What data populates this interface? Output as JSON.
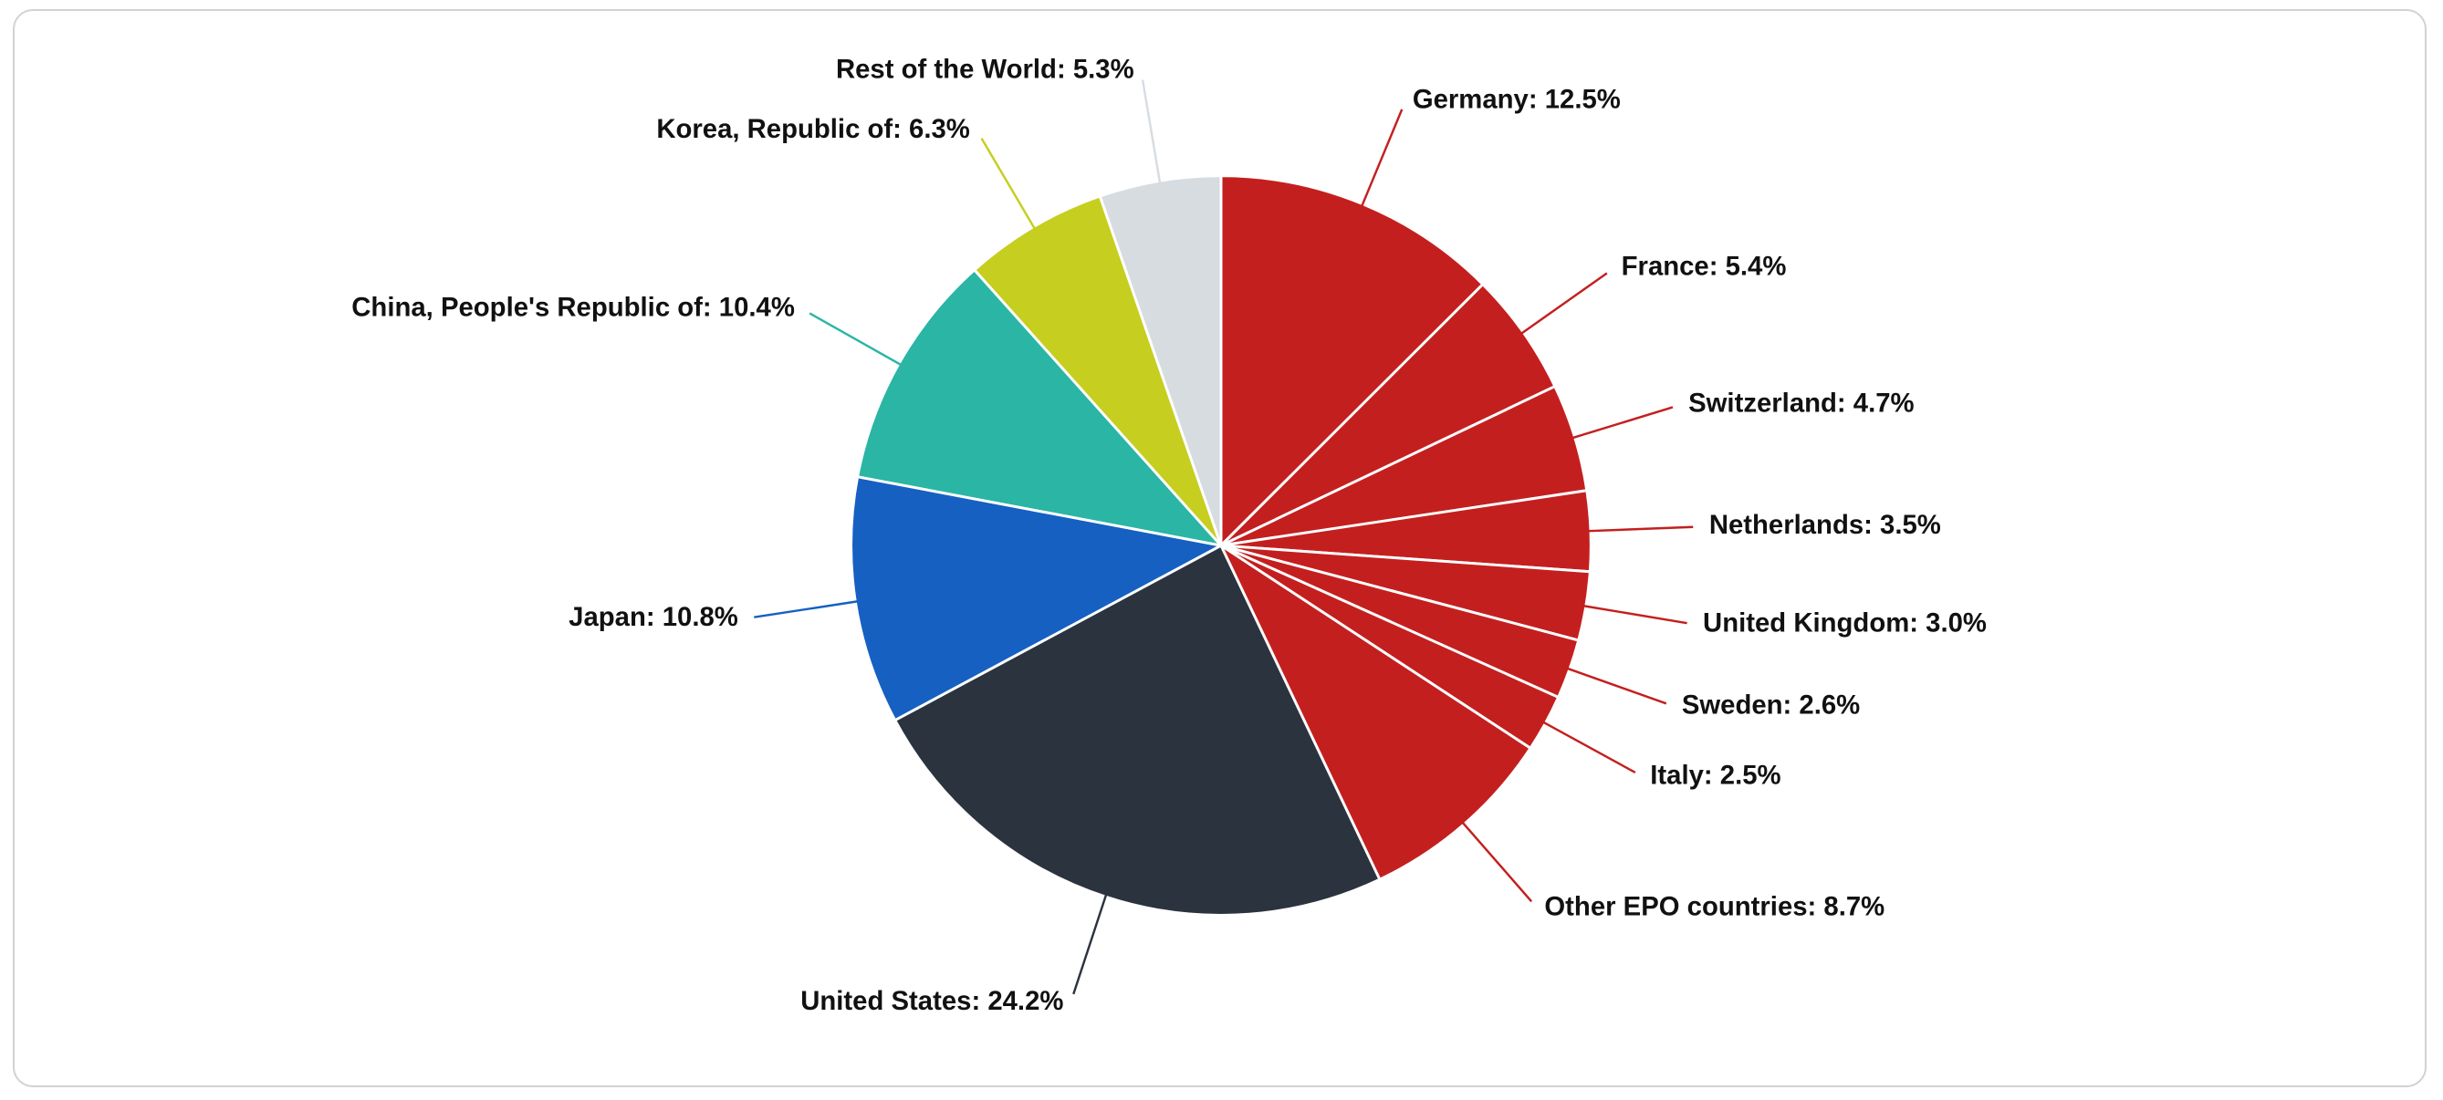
{
  "chart_data": {
    "type": "pie",
    "title": "",
    "unit": "%",
    "label_format": "{name}: {pct}%",
    "start_angle_deg": -90,
    "direction": "clockwise",
    "legend": "none",
    "slices": [
      {
        "name": "Germany",
        "pct": "12.5",
        "color": "#c41f1f"
      },
      {
        "name": "France",
        "pct": "5.4",
        "color": "#c41f1f"
      },
      {
        "name": "Switzerland",
        "pct": "4.7",
        "color": "#c41f1f"
      },
      {
        "name": "Netherlands",
        "pct": "3.5",
        "color": "#c41f1f"
      },
      {
        "name": "United Kingdom",
        "pct": "3.0",
        "color": "#c41f1f"
      },
      {
        "name": "Sweden",
        "pct": "2.6",
        "color": "#c41f1f"
      },
      {
        "name": "Italy",
        "pct": "2.5",
        "color": "#c41f1f"
      },
      {
        "name": "Other EPO countries",
        "pct": "8.7",
        "color": "#c41f1f"
      },
      {
        "name": "United States",
        "pct": "24.2",
        "color": "#2b333f"
      },
      {
        "name": "Japan",
        "pct": "10.8",
        "color": "#1660c2"
      },
      {
        "name": "China, People's Republic of",
        "pct": "10.4",
        "color": "#2ab5a5"
      },
      {
        "name": "Korea, Republic of",
        "pct": "6.3",
        "color": "#c6ce1f"
      },
      {
        "name": "Rest of the World",
        "pct": "5.3",
        "color": "#d7dce1"
      }
    ],
    "colors": {
      "epo_countries": "#c41f1f",
      "united_states": "#2b333f",
      "japan": "#1660c2",
      "china": "#2ab5a5",
      "korea": "#c6ce1f",
      "rest_of_world": "#d7dce1",
      "slice_separator": "#ffffff",
      "label_text": "#111111"
    }
  }
}
